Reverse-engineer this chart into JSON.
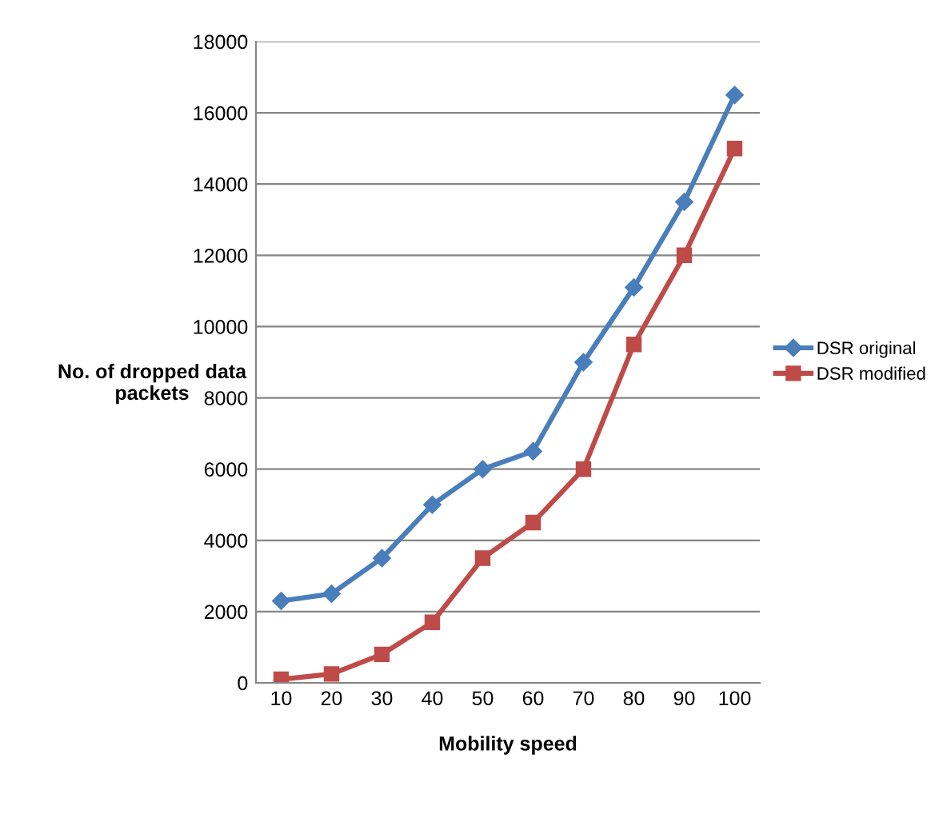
{
  "chart_data": {
    "type": "line",
    "xlabel": "Mobility speed",
    "ylabel": "No. of dropped data\npackets",
    "categories": [
      "10",
      "20",
      "30",
      "40",
      "50",
      "60",
      "70",
      "80",
      "90",
      "100"
    ],
    "series": [
      {
        "name": "DSR original",
        "color": "#4a7ebb",
        "marker": "diamond",
        "values": [
          2300,
          2500,
          3500,
          5000,
          6000,
          6500,
          9000,
          11100,
          13500,
          16500
        ]
      },
      {
        "name": "DSR modified",
        "color": "#be4b48",
        "marker": "square",
        "values": [
          100,
          250,
          800,
          1700,
          3500,
          4500,
          6000,
          9500,
          12000,
          15000
        ]
      }
    ],
    "ylim": [
      0,
      18000
    ],
    "yticks": [
      0,
      2000,
      4000,
      6000,
      8000,
      10000,
      12000,
      14000,
      16000,
      18000
    ],
    "grid": "y",
    "legend": "right",
    "line_style": "solid"
  }
}
